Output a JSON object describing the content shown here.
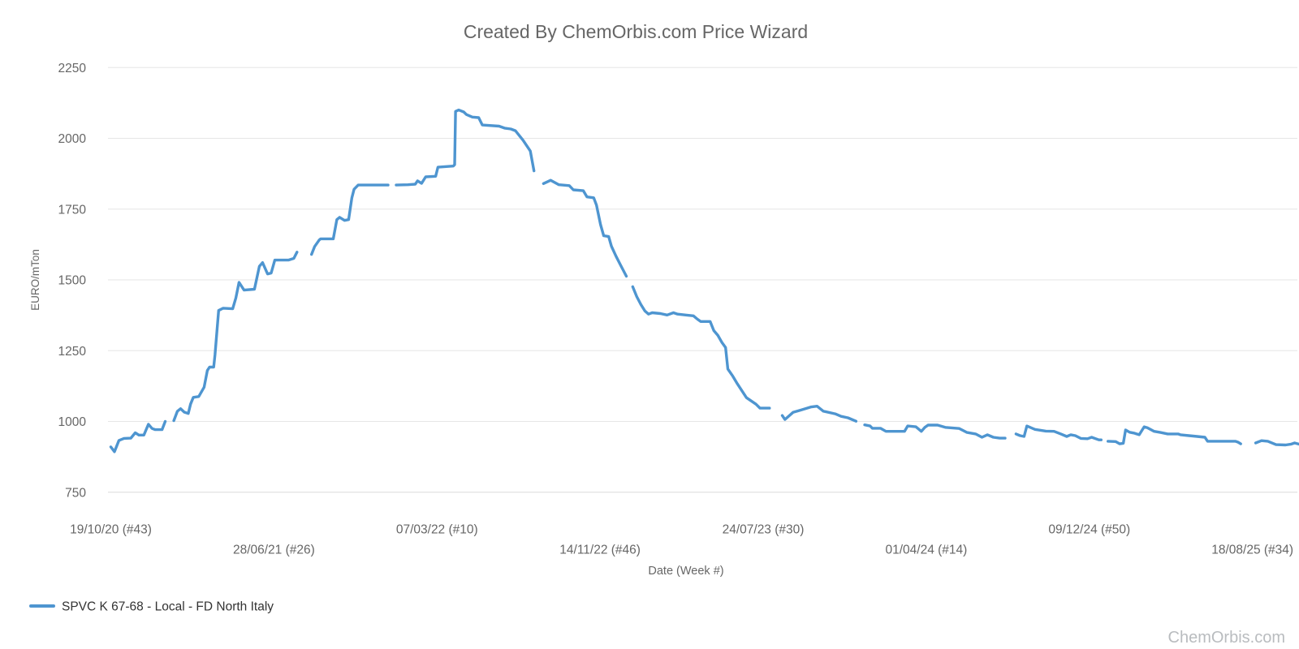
{
  "title": "Created By ChemOrbis.com Price Wizard",
  "watermark": "ChemOrbis.com",
  "legend": {
    "items": [
      {
        "label": "SPVC K 67-68 - Local - FD North Italy",
        "color": "#4e95d0"
      }
    ]
  },
  "colors": {
    "series_line": "#4e95d0",
    "gridline": "#e6e6e6",
    "baseline_gridline": "#dcdcdc",
    "title_text": "#666666",
    "tick_text": "#666666",
    "legend_text": "#333333",
    "watermark_text": "#b9bcbf",
    "background": "#ffffff"
  },
  "chart_data": {
    "type": "line",
    "title": "Created By ChemOrbis.com Price Wizard",
    "xlabel": "Date (Week #)",
    "ylabel": "EURO/mTon",
    "ylim": [
      750,
      2250
    ],
    "y_ticks": [
      750,
      1000,
      1250,
      1500,
      1750,
      2000,
      2250
    ],
    "grid": "horizontal-only",
    "legend_position": "bottom-left",
    "x_unit": "weeks since 19/10/2020",
    "x_ticks": [
      {
        "label": "19/10/20 (#43)",
        "week": 0,
        "row": 1
      },
      {
        "label": "28/06/21 (#26)",
        "week": 36,
        "row": 2
      },
      {
        "label": "07/03/22 (#10)",
        "week": 72,
        "row": 1
      },
      {
        "label": "14/11/22 (#46)",
        "week": 108,
        "row": 2
      },
      {
        "label": "24/07/23 (#30)",
        "week": 144,
        "row": 1
      },
      {
        "label": "01/04/24 (#14)",
        "week": 180,
        "row": 2
      },
      {
        "label": "09/12/24 (#50)",
        "week": 216,
        "row": 1
      },
      {
        "label": "18/08/25 (#34)",
        "week": 252,
        "row": 2
      }
    ],
    "series": [
      {
        "name": "SPVC K 67-68 - Local - FD North Italy",
        "color": "#4e95d0",
        "unit": "EURO/mTon",
        "note": "segments are [week, price]; breaks between segments are missing-data gaps in the plotted line",
        "segments": [
          [
            [
              0,
              910
            ],
            [
              0.8,
              893
            ],
            [
              1.8,
              933
            ],
            [
              2.9,
              940
            ],
            [
              4.4,
              941
            ],
            [
              5.4,
              960
            ],
            [
              6.2,
              952
            ],
            [
              7.3,
              952
            ],
            [
              8.3,
              990
            ],
            [
              9.1,
              975
            ],
            [
              9.8,
              971
            ],
            [
              11.3,
              971
            ],
            [
              12,
              1000
            ]
          ],
          [
            [
              13.9,
              1003
            ],
            [
              14.7,
              1036
            ],
            [
              15.4,
              1045
            ],
            [
              16.2,
              1033
            ],
            [
              17.1,
              1028
            ],
            [
              17.6,
              1061
            ],
            [
              18.2,
              1085
            ],
            [
              19.4,
              1088
            ],
            [
              20.6,
              1121
            ],
            [
              21.3,
              1180
            ],
            [
              21.8,
              1192
            ],
            [
              22.7,
              1192
            ],
            [
              23,
              1235
            ],
            [
              23.8,
              1392
            ],
            [
              24.8,
              1400
            ],
            [
              26.9,
              1398
            ],
            [
              27.6,
              1436
            ],
            [
              28.3,
              1491
            ],
            [
              29.4,
              1464
            ],
            [
              31.7,
              1467
            ],
            [
              32.8,
              1548
            ],
            [
              33.5,
              1561
            ],
            [
              34.6,
              1521
            ],
            [
              35.4,
              1524
            ],
            [
              36.2,
              1570
            ],
            [
              39.2,
              1570
            ],
            [
              40.4,
              1576
            ],
            [
              41.1,
              1598
            ]
          ],
          [
            [
              44.3,
              1590
            ],
            [
              45,
              1618
            ],
            [
              46,
              1641
            ],
            [
              46.3,
              1645
            ],
            [
              49.1,
              1645
            ],
            [
              49.9,
              1713
            ],
            [
              50.5,
              1721
            ],
            [
              51.6,
              1710
            ],
            [
              52.5,
              1713
            ],
            [
              53.2,
              1790
            ],
            [
              53.7,
              1820
            ],
            [
              54.6,
              1835
            ],
            [
              61.2,
              1835
            ]
          ],
          [
            [
              63,
              1835
            ],
            [
              65.6,
              1836
            ],
            [
              67.2,
              1838
            ],
            [
              67.7,
              1850
            ],
            [
              68.6,
              1841
            ],
            [
              69.5,
              1864
            ],
            [
              71.7,
              1866
            ],
            [
              72.2,
              1898
            ],
            [
              75.6,
              1902
            ],
            [
              75.9,
              1907
            ],
            [
              76.1,
              2095
            ],
            [
              76.8,
              2100
            ],
            [
              77.9,
              2093
            ],
            [
              78.5,
              2084
            ],
            [
              79.8,
              2075
            ],
            [
              81.2,
              2073
            ],
            [
              82,
              2047
            ],
            [
              85.7,
              2043
            ],
            [
              86.9,
              2036
            ],
            [
              88.3,
              2033
            ],
            [
              89.3,
              2027
            ],
            [
              91,
              1993
            ],
            [
              92.6,
              1955
            ],
            [
              93.4,
              1885
            ]
          ],
          [
            [
              95.5,
              1840
            ],
            [
              97.1,
              1852
            ],
            [
              98.9,
              1836
            ],
            [
              101.2,
              1833
            ],
            [
              102.1,
              1818
            ],
            [
              104.3,
              1815
            ],
            [
              105.1,
              1793
            ],
            [
              106.6,
              1790
            ],
            [
              107.2,
              1764
            ],
            [
              108.1,
              1695
            ],
            [
              108.8,
              1656
            ],
            [
              109.9,
              1653
            ],
            [
              110.5,
              1619
            ],
            [
              111.5,
              1584
            ],
            [
              112.4,
              1556
            ],
            [
              113.8,
              1513
            ]
          ],
          [
            [
              115.2,
              1476
            ],
            [
              116.1,
              1441
            ],
            [
              117,
              1413
            ],
            [
              117.9,
              1390
            ],
            [
              118.7,
              1379
            ],
            [
              119.5,
              1384
            ],
            [
              121.3,
              1381
            ],
            [
              122.8,
              1376
            ],
            [
              124.2,
              1384
            ],
            [
              125.1,
              1379
            ],
            [
              126.9,
              1376
            ],
            [
              128.6,
              1373
            ],
            [
              129.5,
              1361
            ],
            [
              130.2,
              1353
            ],
            [
              132.3,
              1353
            ],
            [
              133.1,
              1321
            ],
            [
              134,
              1304
            ],
            [
              134.9,
              1279
            ],
            [
              135.7,
              1261
            ],
            [
              136.2,
              1185
            ],
            [
              137.3,
              1160
            ],
            [
              138.3,
              1133
            ],
            [
              140.3,
              1084
            ],
            [
              142.4,
              1061
            ],
            [
              143.3,
              1047
            ],
            [
              145.4,
              1047
            ]
          ],
          [
            [
              148.2,
              1021
            ],
            [
              148.8,
              1007
            ],
            [
              150.6,
              1032
            ],
            [
              152.3,
              1040
            ],
            [
              154.5,
              1051
            ],
            [
              155.9,
              1054
            ],
            [
              157.3,
              1036
            ],
            [
              159.9,
              1027
            ],
            [
              161.2,
              1018
            ],
            [
              162.7,
              1013
            ],
            [
              164.5,
              1001
            ]
          ],
          [
            [
              166.4,
              988
            ],
            [
              167.6,
              984
            ],
            [
              168.1,
              976
            ],
            [
              169.9,
              976
            ],
            [
              171.1,
              965
            ],
            [
              175.2,
              965
            ],
            [
              175.9,
              984
            ],
            [
              177.7,
              981
            ],
            [
              178.9,
              965
            ],
            [
              179.7,
              979
            ],
            [
              180.4,
              987
            ],
            [
              182.5,
              987
            ],
            [
              184.2,
              979
            ],
            [
              187.3,
              975
            ],
            [
              189,
              961
            ],
            [
              190.9,
              956
            ],
            [
              192.3,
              944
            ],
            [
              193.5,
              953
            ],
            [
              194.8,
              944
            ],
            [
              196.2,
              941
            ],
            [
              197.4,
              941
            ]
          ],
          [
            [
              199.8,
              956
            ],
            [
              200.7,
              950
            ],
            [
              201.6,
              947
            ],
            [
              202.2,
              984
            ],
            [
              204,
              972
            ],
            [
              206.4,
              966
            ],
            [
              208.2,
              965
            ],
            [
              209.7,
              956
            ],
            [
              211,
              947
            ],
            [
              211.9,
              953
            ],
            [
              212.9,
              950
            ],
            [
              214.1,
              940
            ],
            [
              215.6,
              939
            ],
            [
              216.5,
              944
            ],
            [
              218.1,
              935
            ],
            [
              218.6,
              935
            ]
          ],
          [
            [
              220.1,
              930
            ],
            [
              221.8,
              929
            ],
            [
              222.7,
              921
            ],
            [
              223.5,
              923
            ],
            [
              224,
              970
            ],
            [
              224.9,
              962
            ],
            [
              225.8,
              959
            ],
            [
              227,
              953
            ],
            [
              228.1,
              981
            ],
            [
              228.8,
              978
            ],
            [
              230.3,
              965
            ],
            [
              231.7,
              961
            ],
            [
              233.3,
              956
            ],
            [
              235.6,
              956
            ],
            [
              236.1,
              953
            ],
            [
              238,
              950
            ],
            [
              239.8,
              947
            ],
            [
              241.5,
              944
            ],
            [
              242.1,
              930
            ],
            [
              248.2,
              930
            ],
            [
              248.8,
              927
            ],
            [
              249.4,
              921
            ]
          ],
          [
            [
              252.7,
              924
            ],
            [
              254,
              932
            ],
            [
              255.4,
              930
            ],
            [
              257.2,
              918
            ],
            [
              259.3,
              917
            ],
            [
              260.6,
              920
            ],
            [
              261.3,
              924
            ],
            [
              262.2,
              920
            ]
          ]
        ]
      }
    ]
  }
}
